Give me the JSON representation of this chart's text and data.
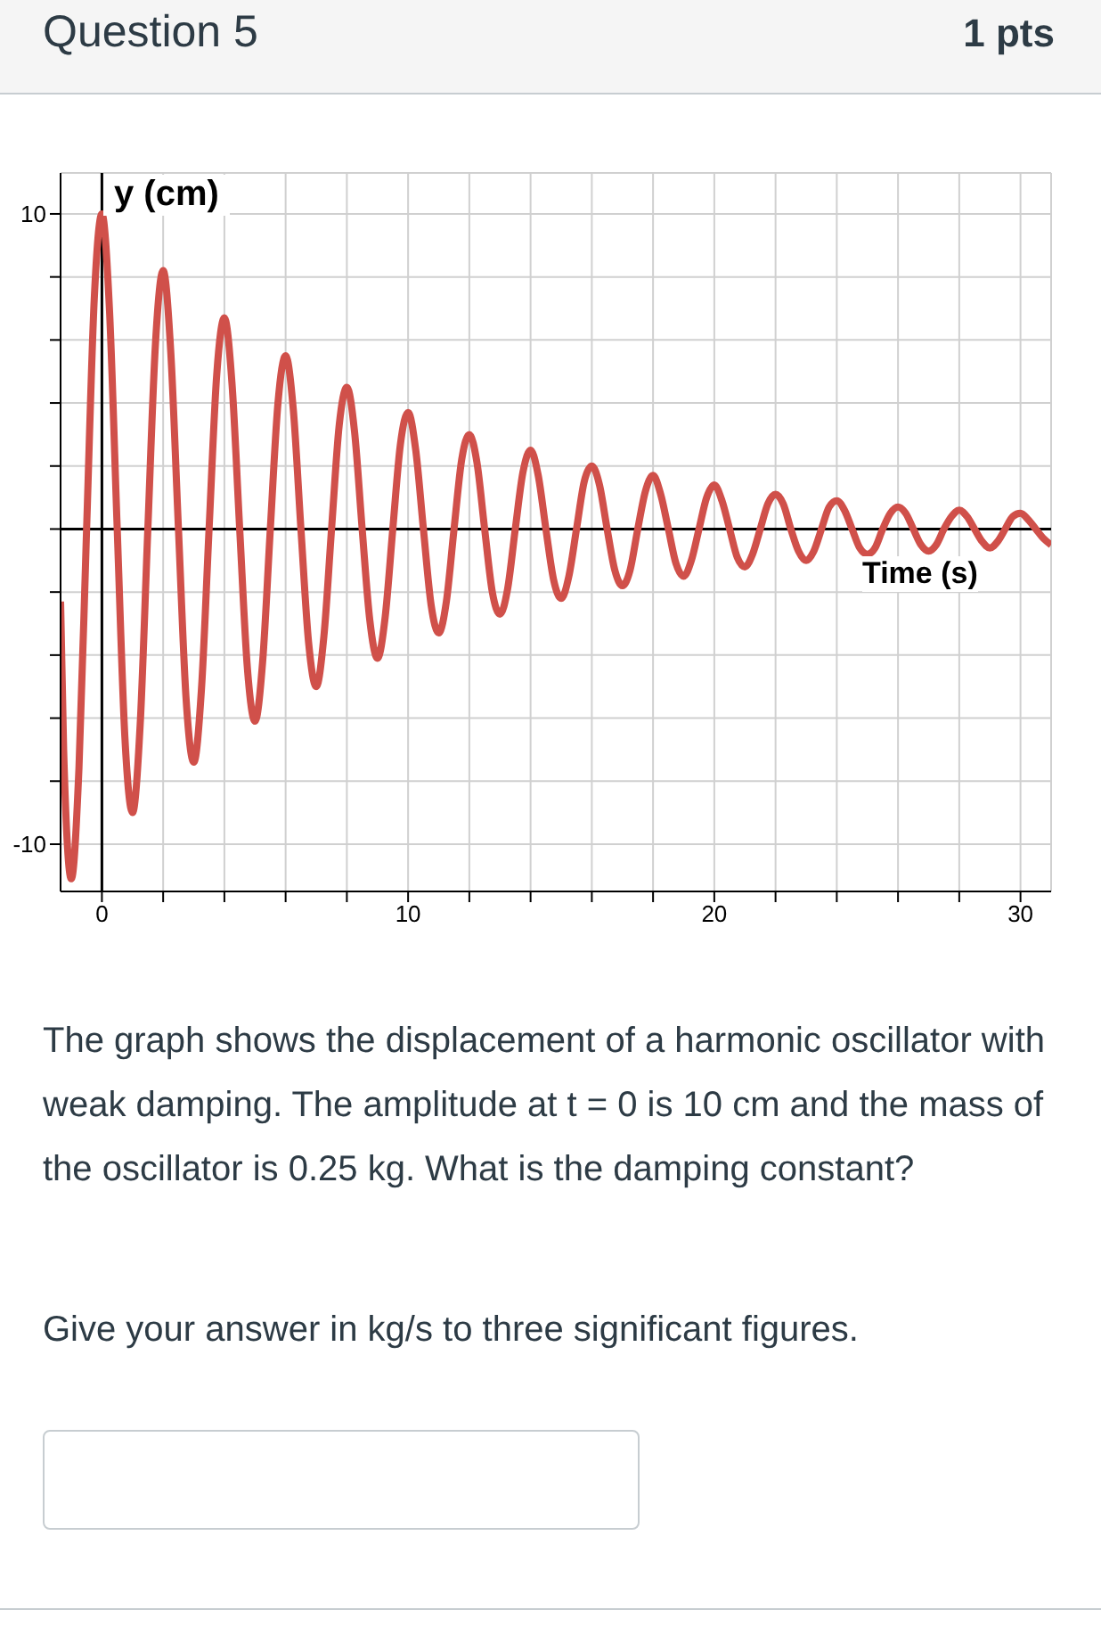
{
  "chart_data": {
    "type": "line",
    "title": "Question 5",
    "xlabel": "Time (s)",
    "ylabel": "y (cm)",
    "annotations": [
      "1 pts",
      "The graph shows the displacement of a harmonic oscillator with weak damping. The amplitude at t = 0 is 10 cm and the mass of the oscillator is 0.25 kg. What is the damping constant?",
      "Give your answer in kg/s to three significant figures."
    ],
    "x": [
      -1.35,
      -1.25,
      -1,
      -0.75,
      -0.5,
      -0.25,
      0,
      0.25,
      0.5,
      0.75,
      1,
      1.25,
      1.5,
      1.75,
      2,
      2.25,
      2.5,
      2.75,
      3,
      3.25,
      3.5,
      3.75,
      4,
      4.25,
      4.5,
      4.75,
      5,
      5.25,
      5.5,
      5.75,
      6,
      6.25,
      6.5,
      6.75,
      7,
      7.25,
      7.5,
      7.75,
      8,
      8.25,
      8.5,
      8.75,
      9,
      9.25,
      9.5,
      9.75,
      10,
      10.25,
      10.5,
      10.75,
      11,
      11.25,
      11.5,
      11.75,
      12,
      12.25,
      12.5,
      12.75,
      13,
      13.25,
      13.5,
      13.75,
      14,
      14.25,
      14.5,
      14.75,
      15,
      15.25,
      15.5,
      15.75,
      16,
      16.25,
      16.5,
      16.75,
      17,
      17.25,
      17.5,
      17.75,
      18,
      18.25,
      18.5,
      18.75,
      19,
      19.25,
      19.5,
      19.75,
      20,
      20.25,
      20.5,
      20.75,
      21,
      21.25,
      21.5,
      21.75,
      22,
      22.25,
      22.5,
      22.75,
      23,
      23.25,
      23.5,
      23.75,
      24,
      24.25,
      24.5,
      24.75,
      25,
      25.25,
      25.5,
      25.75,
      26,
      26.25,
      26.5,
      26.75,
      27,
      27.25,
      27.5,
      27.75,
      28,
      28.25,
      28.5,
      28.75,
      29,
      29.25,
      29.5,
      29.75,
      30,
      30.25,
      30.5,
      30.75,
      31
    ],
    "series": [
      {
        "color": "#d0504a",
        "values": [
          -2.3,
          -7.0,
          -11.1,
          -7.6,
          0,
          7.3,
          10,
          6.9,
          0,
          -6.6,
          -9.0,
          -6.2,
          0,
          5.9,
          8.2,
          5.6,
          0,
          -5.4,
          -7.4,
          -5.1,
          0,
          4.9,
          6.7,
          4.6,
          0,
          -4.4,
          -6.1,
          -4.2,
          0,
          4.0,
          5.5,
          3.8,
          0,
          -3.6,
          -5.0,
          -3.4,
          0,
          3.3,
          4.5,
          3.1,
          0,
          -2.9,
          -4.1,
          -2.8,
          0,
          2.7,
          3.7,
          2.5,
          0,
          -2.4,
          -3.3,
          -2.3,
          0,
          2.2,
          3.0,
          2.1,
          0,
          -2.0,
          -2.7,
          -1.9,
          0,
          1.8,
          2.5,
          1.7,
          0,
          -1.6,
          -2.2,
          -1.5,
          0,
          1.5,
          2.0,
          1.4,
          0,
          -1.3,
          -1.8,
          -1.3,
          0,
          1.2,
          1.7,
          1.1,
          0,
          -1.1,
          -1.5,
          -1.0,
          0,
          1.0,
          1.4,
          0.9,
          0,
          -0.9,
          -1.2,
          -0.8,
          0,
          0.8,
          1.1,
          0.8,
          0,
          -0.7,
          -1.0,
          -0.7,
          0,
          0.7,
          0.9,
          0.6,
          0,
          -0.6,
          -0.8,
          -0.6,
          0,
          0.5,
          0.7,
          0.5,
          0,
          -0.5,
          -0.7,
          -0.5,
          0,
          0.4,
          0.6,
          0.4,
          0,
          -0.4,
          -0.6,
          -0.4,
          0,
          0.4,
          0.5,
          0.3,
          0,
          -0.3,
          -0.5
        ]
      }
    ],
    "xlim": [
      -1.35,
      31
    ],
    "ylim": [
      -11.5,
      11.3
    ],
    "xticks": [
      0,
      {
        "value": 2,
        "label": null
      },
      {
        "value": 4,
        "label": null
      },
      {
        "value": 6,
        "label": null
      },
      {
        "value": 8,
        "label": null
      },
      10,
      {
        "value": 12,
        "label": null
      },
      {
        "value": 14,
        "label": null
      },
      {
        "value": 16,
        "label": null
      },
      {
        "value": 18,
        "label": null
      },
      20,
      {
        "value": 22,
        "label": null
      },
      {
        "value": 24,
        "label": null
      },
      {
        "value": 26,
        "label": null
      },
      {
        "value": 28,
        "label": null
      },
      30
    ],
    "yticks": [
      -10,
      {
        "value": -8,
        "label": null
      },
      {
        "value": -6,
        "label": null
      },
      {
        "value": -4,
        "label": null
      },
      {
        "value": -2,
        "label": null
      },
      {
        "value": 0,
        "label": null
      },
      {
        "value": 2,
        "label": null
      },
      {
        "value": 4,
        "label": null
      },
      {
        "value": 6,
        "label": null
      },
      {
        "value": 8,
        "label": null
      },
      10
    ],
    "grid": true,
    "marker": "none",
    "line_style": "solid"
  }
}
